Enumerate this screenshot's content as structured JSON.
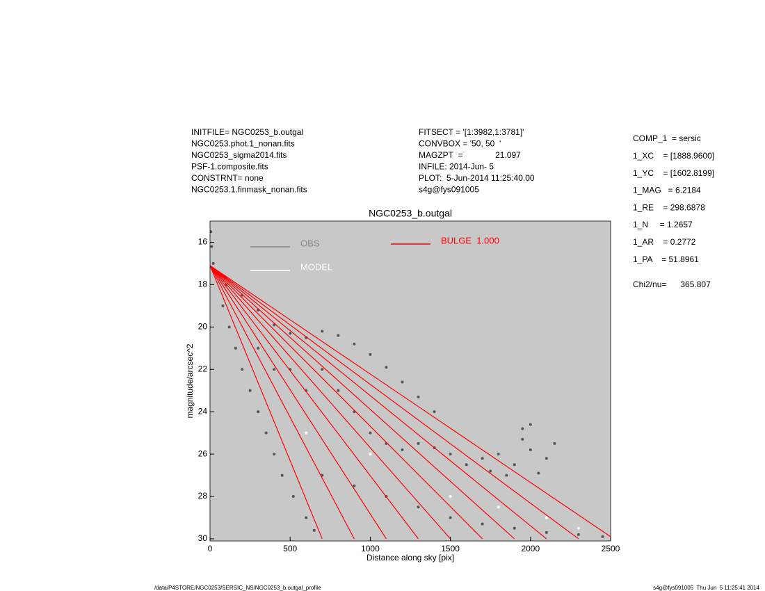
{
  "chart_data": {
    "type": "scatter",
    "title": "NGC0253_b.outgal",
    "xlabel": "Distance along sky [pix]",
    "ylabel": "magnitude/arcsec^2",
    "xlim": [
      0,
      2500
    ],
    "ylim": [
      30.1,
      15.0
    ],
    "xticks": [
      0,
      500,
      1000,
      1500,
      2000,
      2500
    ],
    "yticks": [
      16,
      18,
      20,
      22,
      24,
      26,
      28,
      30
    ],
    "plot_background": "#c8c8c8",
    "series": [
      {
        "name": "OBS",
        "color": "#555555",
        "mode": "points",
        "x": [
          5,
          10,
          20,
          50,
          100,
          200,
          300,
          400,
          500,
          600,
          700,
          800,
          900,
          1000,
          1100,
          1200,
          1300,
          1400,
          80,
          120,
          160,
          200,
          250,
          300,
          350,
          400,
          450,
          520,
          600,
          650,
          300,
          400,
          500,
          600,
          700,
          800,
          900,
          1000,
          1100,
          1200,
          1300,
          1400,
          1500,
          1600,
          1700,
          1800,
          1900,
          2000,
          2100,
          2150,
          1750,
          1850,
          1950,
          2050,
          700,
          900,
          1100,
          1300,
          1500,
          1700,
          1900,
          2100,
          2300,
          2450,
          1950,
          2000
        ],
        "values": [
          15.5,
          16.2,
          17,
          17.5,
          18,
          18.5,
          19.2,
          19.9,
          20.3,
          20.5,
          20.2,
          20.4,
          20.8,
          21.3,
          21.9,
          22.6,
          23.3,
          24,
          19,
          20,
          21,
          22,
          23,
          24,
          25,
          26,
          27,
          28,
          29,
          29.6,
          21,
          22,
          22,
          23,
          22,
          23,
          24,
          25,
          25.5,
          25.8,
          25.5,
          25.7,
          26,
          26.5,
          26.2,
          26,
          26.5,
          25.8,
          26.2,
          25.5,
          26.8,
          27,
          25.3,
          26.9,
          27,
          27.5,
          28,
          28.5,
          29,
          29.3,
          29.5,
          29.7,
          29.8,
          29.9,
          24.8,
          24.6
        ]
      },
      {
        "name": "MODEL",
        "color": "#ffffff",
        "mode": "points",
        "x": [
          600,
          1000,
          1500,
          1800,
          2100,
          2300
        ],
        "values": [
          25,
          26,
          28,
          28.5,
          29,
          29.5
        ]
      },
      {
        "name": "BULGE  1.000",
        "color": "#ff0000",
        "mode": "lines",
        "x": [
          0,
          700,
          null,
          0,
          900,
          null,
          0,
          1100,
          null,
          0,
          1300,
          null,
          0,
          1500,
          null,
          0,
          1700,
          null,
          0,
          1900,
          null,
          0,
          2100,
          null,
          0,
          2300,
          null,
          0,
          2500
        ],
        "values": [
          17.1,
          30,
          null,
          17.1,
          30,
          null,
          17.1,
          30,
          null,
          17.1,
          30,
          null,
          17.1,
          30,
          null,
          17.1,
          30,
          null,
          17.1,
          30,
          null,
          17.1,
          30,
          null,
          17.1,
          30,
          null,
          17.1,
          29.9
        ]
      }
    ],
    "info_left": [
      "INITFILE= NGC0253_b.outgal",
      "NGC0253.phot.1_nonan.fits",
      "NGC0253_sigma2014.fits",
      "PSF-1.composite.fits",
      "CONSTRNT= none",
      "NGC0253.1.finmask_nonan.fits"
    ],
    "info_middle": [
      "FITSECT = '[1:3982,1:3781]'",
      "CONVBOX = '50, 50  '",
      "MAGZPT  =              21.097",
      "INFILE: 2014-Jun- 5",
      "PLOT:  5-Jun-2014 11:25:40.00",
      "s4g@fys091005"
    ],
    "info_right": [
      "COMP_1  = sersic",
      "1_XC    = [1888.9600]",
      "1_YC    = [1602.8199]",
      "1_MAG   = 6.2184",
      "1_RE    = 298.6878",
      "1_N     = 1.2657",
      "1_AR    = 0.2772",
      "1_PA    = 51.8961"
    ],
    "chi2": "Chi2/nu=      365.807",
    "footer_left": "/data/P4STORE/NGC0253/SERSIC_NS/NGC0253_b.outgal_profile",
    "footer_right": "s4g@fys091005  Thu Jun  5 11:25:41 2014"
  }
}
